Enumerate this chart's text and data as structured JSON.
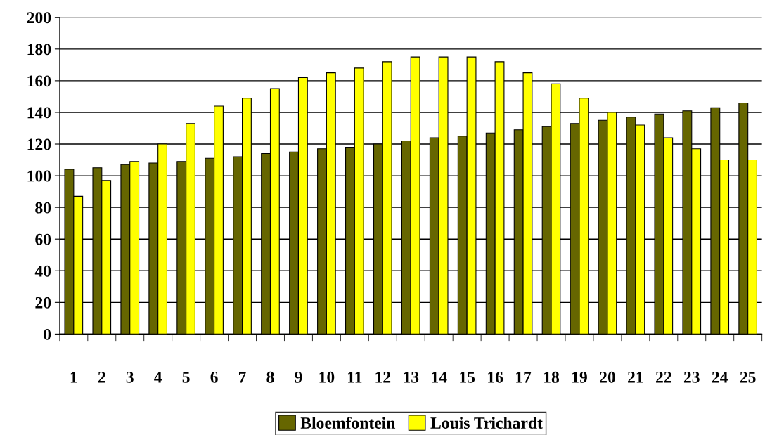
{
  "chart_data": {
    "type": "bar",
    "categories": [
      "1",
      "2",
      "3",
      "4",
      "5",
      "6",
      "7",
      "8",
      "9",
      "10",
      "11",
      "12",
      "13",
      "14",
      "15",
      "16",
      "17",
      "18",
      "19",
      "20",
      "21",
      "22",
      "23",
      "24",
      "25"
    ],
    "series": [
      {
        "name": "Bloemfontein",
        "color": "#666600",
        "values": [
          104,
          105,
          107,
          108,
          109,
          111,
          112,
          114,
          115,
          117,
          118,
          120,
          122,
          124,
          125,
          127,
          129,
          131,
          133,
          135,
          137,
          139,
          141,
          143,
          146
        ]
      },
      {
        "name": "Louis Trichardt",
        "color": "#ffff00",
        "values": [
          87,
          97,
          109,
          120,
          133,
          144,
          149,
          155,
          162,
          165,
          168,
          172,
          175,
          175,
          175,
          172,
          165,
          158,
          149,
          140,
          132,
          124,
          117,
          110,
          110
        ]
      }
    ],
    "ylim": [
      0,
      200
    ],
    "yticks": [
      0,
      20,
      40,
      60,
      80,
      100,
      120,
      140,
      160,
      180,
      200
    ],
    "grid": "y",
    "legend": "bottom"
  }
}
